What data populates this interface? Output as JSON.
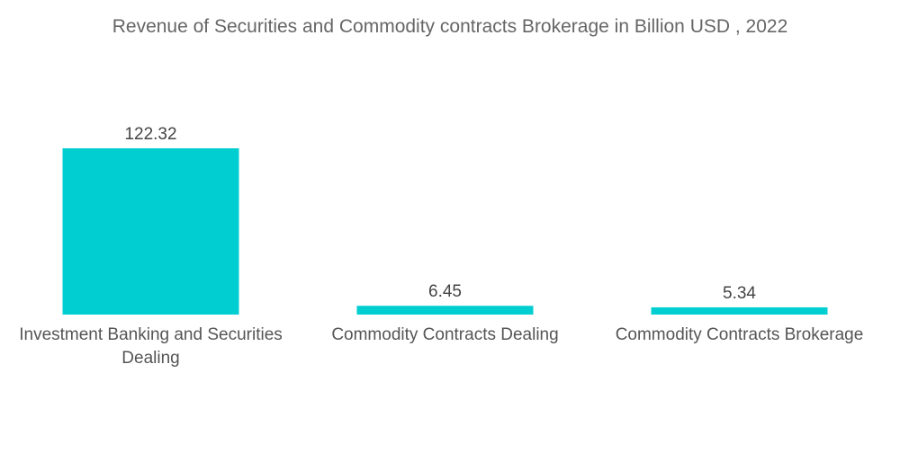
{
  "chart_data": {
    "type": "bar",
    "title": "Revenue of Securities and Commodity contracts Brokerage in Billion USD , 2022",
    "categories": [
      [
        "Investment Banking and Securities",
        "Dealing"
      ],
      [
        "Commodity Contracts Dealing"
      ],
      [
        "Commodity Contracts Brokerage"
      ]
    ],
    "values": [
      122.32,
      6.45,
      5.34
    ],
    "value_labels": [
      "122.32",
      "6.45",
      "5.34"
    ],
    "xlabel": "",
    "ylabel": "",
    "ylim": [
      0,
      122.32
    ],
    "grid": false,
    "legend": "none",
    "bar_color": "#00CED1"
  }
}
